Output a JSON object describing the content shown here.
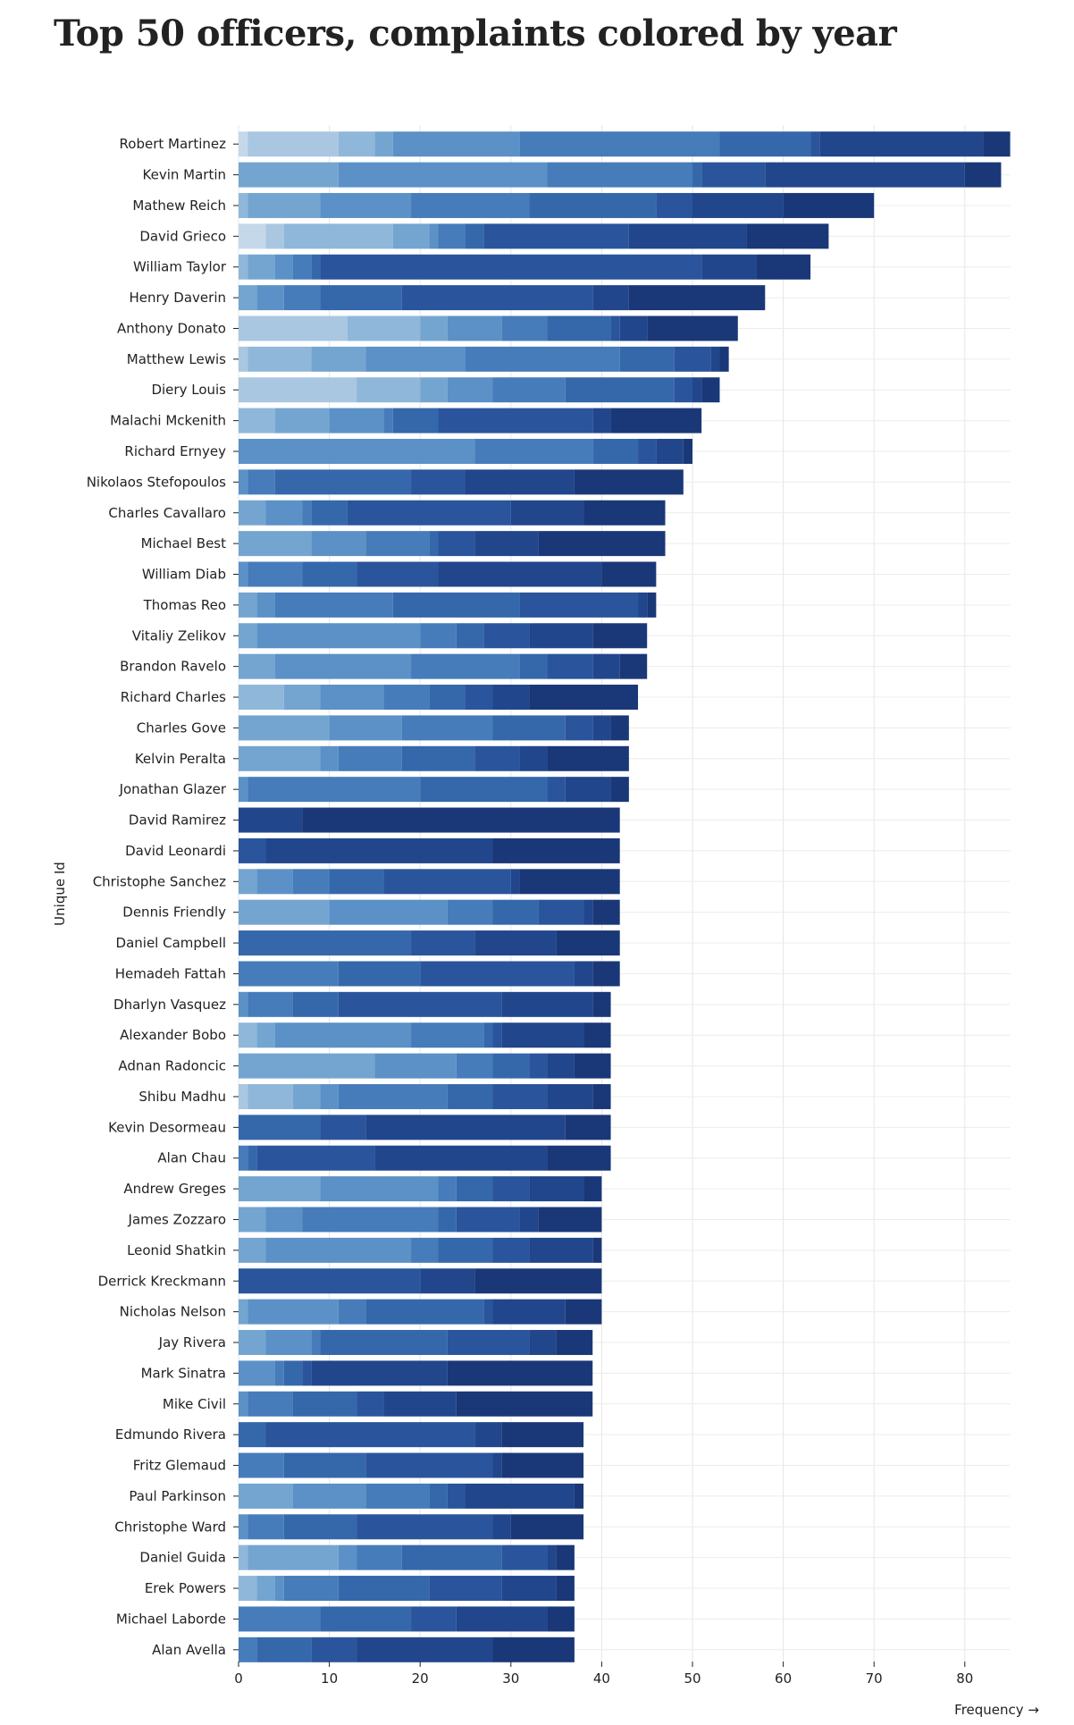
{
  "chart_data": {
    "type": "bar",
    "orientation": "horizontal",
    "stacked": true,
    "title": "Top 50 officers, complaints colored by year",
    "xlabel": "Frequency →",
    "ylabel": "Unique Id",
    "xlim": [
      0,
      85
    ],
    "xticks": [
      0,
      10,
      20,
      30,
      40,
      50,
      60,
      70,
      80
    ],
    "grid": true,
    "legend": "none",
    "color_scheme": [
      "#eef3fa",
      "#dae6f3",
      "#c4d8ea",
      "#aac7e1",
      "#8fb7da",
      "#74a5d0",
      "#5b91c6",
      "#467cba",
      "#3568ab",
      "#2a559c",
      "#21468c",
      "#1a3878"
    ],
    "rows": [
      {
        "name": "Robert Martinez",
        "segments": [
          1,
          10,
          4,
          2,
          14,
          22,
          10,
          1,
          18,
          3
        ]
      },
      {
        "name": "Kevin Martin",
        "segments": [
          11,
          23,
          16,
          1,
          7,
          22,
          4
        ]
      },
      {
        "name": "Mathew Reich",
        "segments": [
          1,
          8,
          10,
          13,
          14,
          4,
          10,
          10
        ]
      },
      {
        "name": "David Grieco",
        "segments": [
          3,
          2,
          12,
          4,
          1,
          3,
          2,
          16,
          13,
          9
        ]
      },
      {
        "name": "William Taylor",
        "segments": [
          1,
          3,
          2,
          2,
          1,
          42,
          6,
          6
        ]
      },
      {
        "name": "Henry Daverin",
        "segments": [
          2,
          3,
          4,
          9,
          21,
          4,
          15
        ]
      },
      {
        "name": "Anthony Donato",
        "segments": [
          12,
          8,
          3,
          6,
          5,
          7,
          1,
          3,
          10
        ]
      },
      {
        "name": "Matthew Lewis",
        "segments": [
          1,
          7,
          6,
          11,
          17,
          6,
          4,
          1,
          1
        ]
      },
      {
        "name": "Diery Louis",
        "segments": [
          13,
          7,
          3,
          5,
          8,
          12,
          2,
          1,
          2
        ]
      },
      {
        "name": "Malachi Mckenith",
        "segments": [
          4,
          6,
          6,
          1,
          5,
          17,
          2,
          10
        ]
      },
      {
        "name": "Richard Ernyey",
        "segments": [
          26,
          13,
          5,
          2,
          3,
          1
        ]
      },
      {
        "name": "Nikolaos Stefopoulos",
        "segments": [
          1,
          3,
          15,
          6,
          12,
          12
        ]
      },
      {
        "name": "Charles Cavallaro",
        "segments": [
          3,
          4,
          1,
          4,
          18,
          8,
          9
        ]
      },
      {
        "name": "Michael Best",
        "segments": [
          8,
          6,
          7,
          1,
          4,
          7,
          14
        ]
      },
      {
        "name": "William Diab",
        "segments": [
          1,
          6,
          6,
          9,
          18,
          6
        ]
      },
      {
        "name": "Thomas Reo",
        "segments": [
          2,
          2,
          13,
          14,
          13,
          1,
          1
        ]
      },
      {
        "name": "Vitaliy Zelikov",
        "segments": [
          2,
          18,
          4,
          3,
          5,
          7,
          6
        ]
      },
      {
        "name": "Brandon Ravelo",
        "segments": [
          4,
          15,
          12,
          3,
          5,
          3,
          3
        ]
      },
      {
        "name": "Richard Charles",
        "segments": [
          5,
          4,
          7,
          5,
          4,
          3,
          4,
          12
        ]
      },
      {
        "name": "Charles Gove",
        "segments": [
          10,
          8,
          10,
          8,
          3,
          2,
          2
        ]
      },
      {
        "name": "Kelvin Peralta",
        "segments": [
          9,
          2,
          7,
          8,
          5,
          3,
          9
        ]
      },
      {
        "name": "Jonathan Glazer",
        "segments": [
          1,
          19,
          14,
          2,
          5,
          2
        ]
      },
      {
        "name": "David Ramirez",
        "segments": [
          7,
          35
        ]
      },
      {
        "name": "David Leonardi",
        "segments": [
          3,
          25,
          14
        ]
      },
      {
        "name": "Christophe Sanchez",
        "segments": [
          2,
          4,
          4,
          6,
          14,
          1,
          11
        ]
      },
      {
        "name": "Dennis Friendly",
        "segments": [
          10,
          13,
          5,
          5,
          5,
          1,
          3
        ]
      },
      {
        "name": "Daniel Campbell",
        "segments": [
          19,
          7,
          9,
          7
        ]
      },
      {
        "name": "Hemadeh Fattah",
        "segments": [
          11,
          9,
          17,
          2,
          3
        ]
      },
      {
        "name": "Dharlyn Vasquez",
        "segments": [
          1,
          5,
          5,
          18,
          10,
          2
        ]
      },
      {
        "name": "Alexander Bobo",
        "segments": [
          2,
          2,
          15,
          8,
          1,
          1,
          9,
          3
        ]
      },
      {
        "name": "Adnan Radoncic",
        "segments": [
          15,
          9,
          4,
          4,
          2,
          3,
          4
        ]
      },
      {
        "name": "Shibu Madhu",
        "segments": [
          1,
          5,
          3,
          2,
          12,
          5,
          6,
          5,
          2
        ]
      },
      {
        "name": "Kevin Desormeau",
        "segments": [
          9,
          5,
          22,
          5
        ]
      },
      {
        "name": "Alan Chau",
        "segments": [
          1,
          1,
          13,
          19,
          7
        ]
      },
      {
        "name": "Andrew Greges",
        "segments": [
          9,
          13,
          2,
          4,
          4,
          6,
          2
        ]
      },
      {
        "name": "James Zozzaro",
        "segments": [
          3,
          4,
          15,
          2,
          7,
          2,
          7
        ]
      },
      {
        "name": "Leonid Shatkin",
        "segments": [
          3,
          16,
          3,
          6,
          4,
          7,
          1
        ]
      },
      {
        "name": "Derrick Kreckmann",
        "segments": [
          20,
          6,
          14
        ]
      },
      {
        "name": "Nicholas Nelson",
        "segments": [
          1,
          10,
          3,
          13,
          1,
          8,
          4
        ]
      },
      {
        "name": "Jay Rivera",
        "segments": [
          3,
          5,
          1,
          14,
          9,
          3,
          4
        ]
      },
      {
        "name": "Mark Sinatra",
        "segments": [
          4,
          1,
          2,
          1,
          15,
          16
        ]
      },
      {
        "name": "Mike Civil",
        "segments": [
          1,
          5,
          7,
          3,
          8,
          15
        ]
      },
      {
        "name": "Edmundo Rivera",
        "segments": [
          3,
          23,
          3,
          9
        ]
      },
      {
        "name": "Fritz Glemaud",
        "segments": [
          5,
          9,
          14,
          1,
          9
        ]
      },
      {
        "name": "Paul Parkinson",
        "segments": [
          6,
          8,
          7,
          2,
          2,
          12,
          1
        ]
      },
      {
        "name": "Christophe Ward",
        "segments": [
          1,
          4,
          8,
          15,
          2,
          8
        ]
      },
      {
        "name": "Daniel Guida",
        "segments": [
          1,
          10,
          2,
          5,
          11,
          5,
          1,
          2
        ]
      },
      {
        "name": "Erek Powers",
        "segments": [
          2,
          2,
          1,
          6,
          10,
          8,
          6,
          2
        ]
      },
      {
        "name": "Michael Laborde",
        "segments": [
          9,
          10,
          5,
          10,
          3
        ]
      },
      {
        "name": "Alan Avella",
        "segments": [
          2,
          6,
          5,
          15,
          9
        ]
      }
    ]
  }
}
